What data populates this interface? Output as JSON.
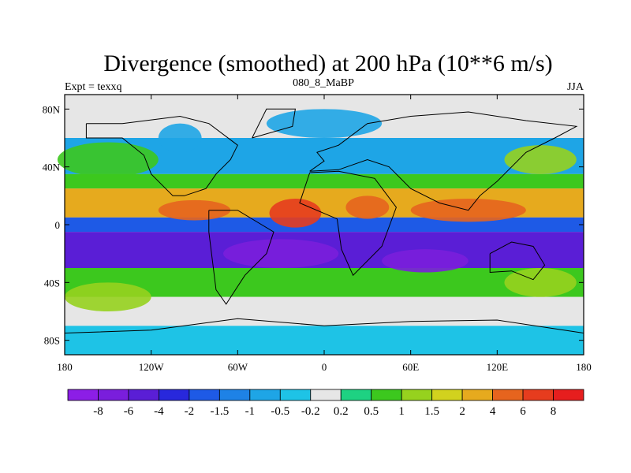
{
  "chart_data": {
    "type": "heatmap",
    "title": "Divergence (smoothed) at 200 hPa (10**6 m/s)",
    "subtitle_left": "Expt = texxq",
    "subtitle_center": "080_8_MaBP",
    "subtitle_right": "JJA",
    "xlim": [
      -180,
      180
    ],
    "ylim": [
      -90,
      90
    ],
    "x_ticks": [
      {
        "value": -180,
        "label": "180"
      },
      {
        "value": -120,
        "label": "120W"
      },
      {
        "value": -60,
        "label": "60W"
      },
      {
        "value": 0,
        "label": "0"
      },
      {
        "value": 60,
        "label": "60E"
      },
      {
        "value": 120,
        "label": "120E"
      },
      {
        "value": 180,
        "label": "180"
      }
    ],
    "y_ticks": [
      {
        "value": 80,
        "label": "80N"
      },
      {
        "value": 40,
        "label": "40N"
      },
      {
        "value": 0,
        "label": "0"
      },
      {
        "value": -40,
        "label": "40S"
      },
      {
        "value": -80,
        "label": "80S"
      }
    ],
    "colorbar": {
      "levels": [
        "-8",
        "-6",
        "-4",
        "-2",
        "-1.5",
        "-1",
        "-0.5",
        "-0.2",
        "0.2",
        "0.5",
        "1",
        "1.5",
        "2",
        "4",
        "6",
        "8"
      ],
      "colors": [
        "#8c1ee6",
        "#7a1edc",
        "#5a1ed6",
        "#2828dc",
        "#1e5ae6",
        "#1e82e6",
        "#1ea5e6",
        "#1ec3e6",
        "#e6e6e6",
        "#1ed282",
        "#3cc81e",
        "#96d21e",
        "#d2d21e",
        "#e6aa1e",
        "#e6641e",
        "#e63c1e",
        "#e61e1e"
      ]
    },
    "bands": [
      {
        "lat_top": 90,
        "lat_bottom": 60,
        "value": 0.0
      },
      {
        "lat_top": 60,
        "lat_bottom": 35,
        "value": -0.7
      },
      {
        "lat_top": 35,
        "lat_bottom": 25,
        "value": 0.8
      },
      {
        "lat_top": 25,
        "lat_bottom": 5,
        "value": 3.0
      },
      {
        "lat_top": 5,
        "lat_bottom": -5,
        "value": -1.8
      },
      {
        "lat_top": -5,
        "lat_bottom": -30,
        "value": -4.5
      },
      {
        "lat_top": -30,
        "lat_bottom": -50,
        "value": 0.9
      },
      {
        "lat_top": -50,
        "lat_bottom": -70,
        "value": 0.0
      },
      {
        "lat_top": -70,
        "lat_bottom": -90,
        "value": -0.5
      }
    ]
  }
}
